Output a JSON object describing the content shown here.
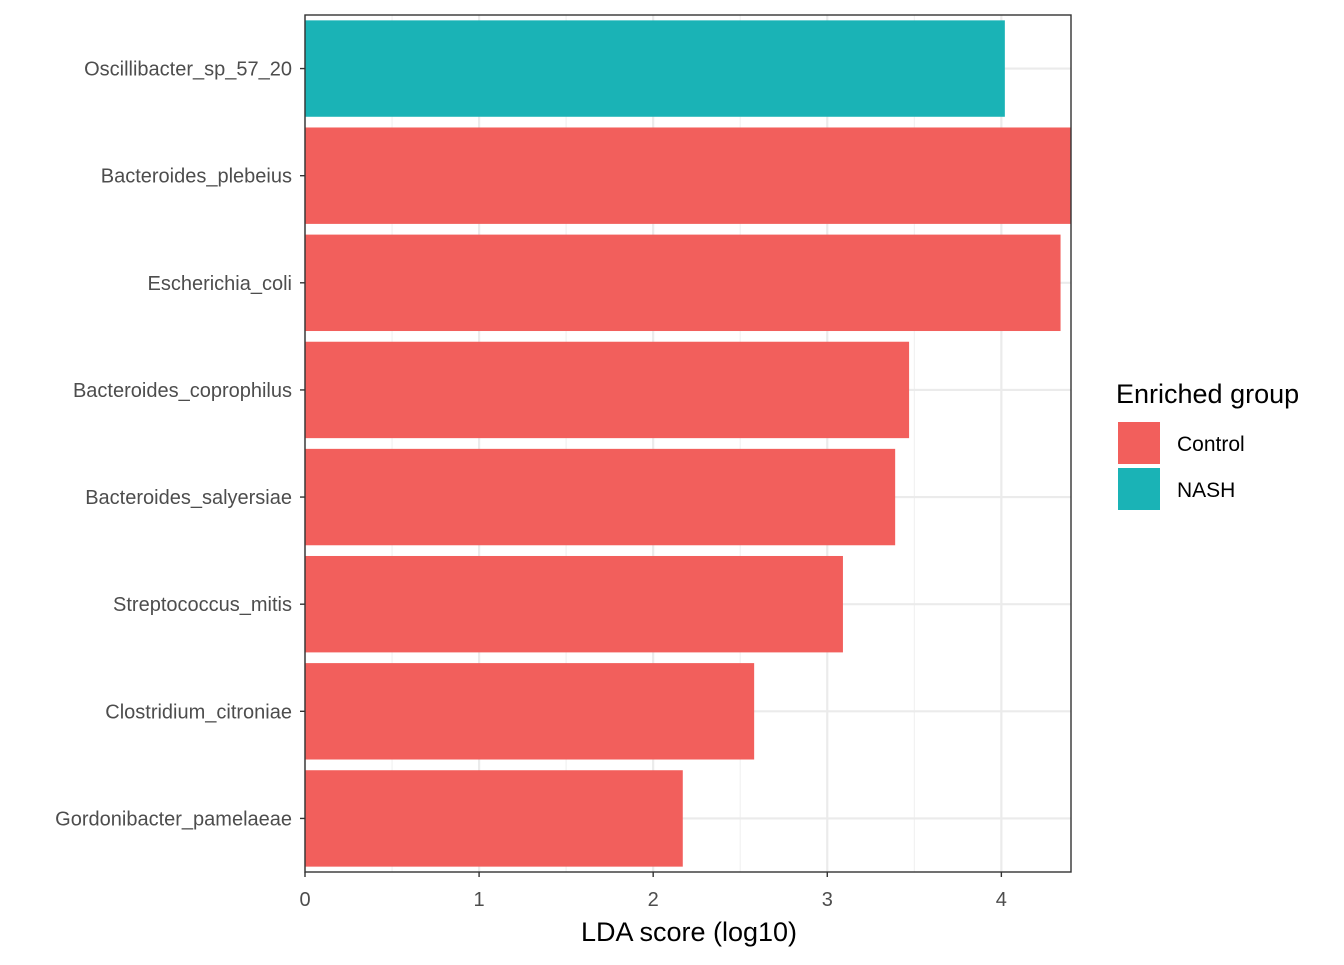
{
  "chart_data": {
    "type": "bar",
    "orientation": "horizontal",
    "categories": [
      "Oscillibacter_sp_57_20",
      "Bacteroides_plebeius",
      "Escherichia_coli",
      "Bacteroides_coprophilus",
      "Bacteroides_salyersiae",
      "Streptococcus_mitis",
      "Clostridium_citroniae",
      "Gordonibacter_pamelaeae"
    ],
    "values": [
      4.02,
      4.45,
      4.34,
      3.47,
      3.39,
      3.09,
      2.58,
      2.17
    ],
    "groups": [
      "NASH",
      "Control",
      "Control",
      "Control",
      "Control",
      "Control",
      "Control",
      "Control"
    ],
    "xlabel": "LDA score (log10)",
    "ylabel": "",
    "xlim": [
      0,
      4.4
    ],
    "xticks": [
      0,
      1,
      2,
      3,
      4
    ],
    "grid": true,
    "legend": {
      "title": "Enriched group",
      "position": "right",
      "entries": [
        {
          "label": "Control",
          "color": "#F25F5C"
        },
        {
          "label": "NASH",
          "color": "#1AB3B6"
        }
      ]
    },
    "colors": {
      "Control": "#F25F5C",
      "NASH": "#1AB3B6"
    }
  }
}
